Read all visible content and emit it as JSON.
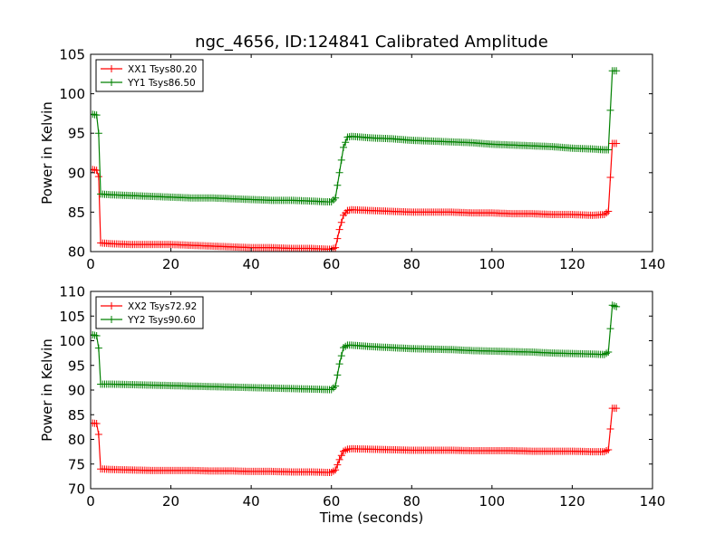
{
  "title": "ngc_4656, ID:124841 Calibrated Amplitude",
  "colors": {
    "xx": "#ff0000",
    "yy": "#008000"
  },
  "chart_data": [
    {
      "type": "line",
      "ylabel": "Power in Kelvin",
      "xlabel": "",
      "xlim": [
        0,
        140
      ],
      "ylim": [
        80,
        105
      ],
      "xticks": [
        "0",
        "20",
        "40",
        "60",
        "80",
        "100",
        "120",
        "140"
      ],
      "yticks": [
        "80",
        "85",
        "90",
        "95",
        "100",
        "105"
      ],
      "legend_placement": "top-left",
      "series": [
        {
          "name": "XX1 Tsys80.20",
          "color": "#ff0000",
          "x": [
            0.5,
            1.5,
            2.0,
            2.5,
            5,
            10,
            15,
            20,
            25,
            30,
            35,
            40,
            45,
            50,
            55,
            59,
            60,
            61,
            62,
            63,
            64,
            65,
            70,
            75,
            80,
            85,
            90,
            95,
            100,
            105,
            110,
            115,
            120,
            125,
            128,
            129,
            130,
            131
          ],
          "y": [
            90.4,
            90.3,
            89.5,
            81.1,
            81.0,
            80.9,
            80.9,
            80.9,
            80.8,
            80.7,
            80.6,
            80.5,
            80.5,
            80.4,
            80.4,
            80.3,
            80.3,
            80.5,
            82.8,
            84.6,
            85.2,
            85.3,
            85.2,
            85.1,
            85.0,
            85.0,
            85.0,
            84.9,
            84.9,
            84.8,
            84.8,
            84.7,
            84.7,
            84.6,
            84.7,
            85.1,
            93.7,
            93.7
          ]
        },
        {
          "name": "YY1 Tsys86.50",
          "color": "#008000",
          "x": [
            0.5,
            1.5,
            2.0,
            2.5,
            5,
            10,
            15,
            20,
            25,
            30,
            35,
            40,
            45,
            50,
            55,
            59,
            60,
            61,
            62,
            63,
            64,
            65,
            70,
            75,
            80,
            85,
            90,
            95,
            100,
            105,
            110,
            115,
            120,
            125,
            128,
            129,
            130,
            131
          ],
          "y": [
            97.4,
            97.3,
            95.0,
            87.3,
            87.2,
            87.1,
            87.0,
            86.9,
            86.8,
            86.8,
            86.7,
            86.6,
            86.5,
            86.5,
            86.4,
            86.3,
            86.3,
            86.8,
            90.0,
            93.2,
            94.5,
            94.6,
            94.4,
            94.3,
            94.1,
            94.0,
            93.9,
            93.8,
            93.6,
            93.5,
            93.4,
            93.3,
            93.1,
            93.0,
            92.9,
            92.9,
            102.9,
            102.9
          ]
        }
      ]
    },
    {
      "type": "line",
      "ylabel": "Power in Kelvin",
      "xlabel": "Time (seconds)",
      "xlim": [
        0,
        140
      ],
      "ylim": [
        70,
        110
      ],
      "xticks": [
        "0",
        "20",
        "40",
        "60",
        "80",
        "100",
        "120",
        "140"
      ],
      "yticks": [
        "70",
        "75",
        "80",
        "85",
        "90",
        "95",
        "100",
        "105",
        "110"
      ],
      "legend_placement": "top-left",
      "series": [
        {
          "name": "XX2 Tsys72.92",
          "color": "#ff0000",
          "x": [
            0.5,
            1.5,
            2.0,
            2.5,
            5,
            10,
            15,
            20,
            25,
            30,
            35,
            40,
            45,
            50,
            55,
            59,
            60,
            61,
            62,
            63,
            64,
            65,
            70,
            75,
            80,
            85,
            90,
            95,
            100,
            105,
            110,
            115,
            120,
            125,
            128,
            129,
            130,
            131
          ],
          "y": [
            83.3,
            83.2,
            81.0,
            74.0,
            73.9,
            73.8,
            73.7,
            73.7,
            73.7,
            73.6,
            73.6,
            73.5,
            73.5,
            73.4,
            73.4,
            73.3,
            73.3,
            73.8,
            75.9,
            77.6,
            78.0,
            78.1,
            78.0,
            77.9,
            77.8,
            77.8,
            77.8,
            77.7,
            77.7,
            77.7,
            77.6,
            77.6,
            77.6,
            77.5,
            77.5,
            77.9,
            86.3,
            86.3
          ]
        },
        {
          "name": "YY2 Tsys90.60",
          "color": "#008000",
          "x": [
            0.5,
            1.5,
            2.0,
            2.5,
            5,
            10,
            15,
            20,
            25,
            30,
            35,
            40,
            45,
            50,
            55,
            59,
            60,
            61,
            62,
            63,
            64,
            65,
            70,
            75,
            80,
            85,
            90,
            95,
            100,
            105,
            110,
            115,
            120,
            125,
            128,
            129,
            130,
            131
          ],
          "y": [
            101.2,
            101.0,
            98.5,
            91.2,
            91.2,
            91.1,
            91.0,
            90.9,
            90.8,
            90.7,
            90.6,
            90.5,
            90.4,
            90.3,
            90.2,
            90.1,
            90.1,
            90.8,
            95.3,
            98.6,
            99.1,
            99.1,
            98.8,
            98.6,
            98.4,
            98.3,
            98.2,
            98.0,
            97.9,
            97.8,
            97.7,
            97.5,
            97.4,
            97.3,
            97.2,
            97.7,
            107.2,
            106.9
          ]
        }
      ]
    }
  ]
}
